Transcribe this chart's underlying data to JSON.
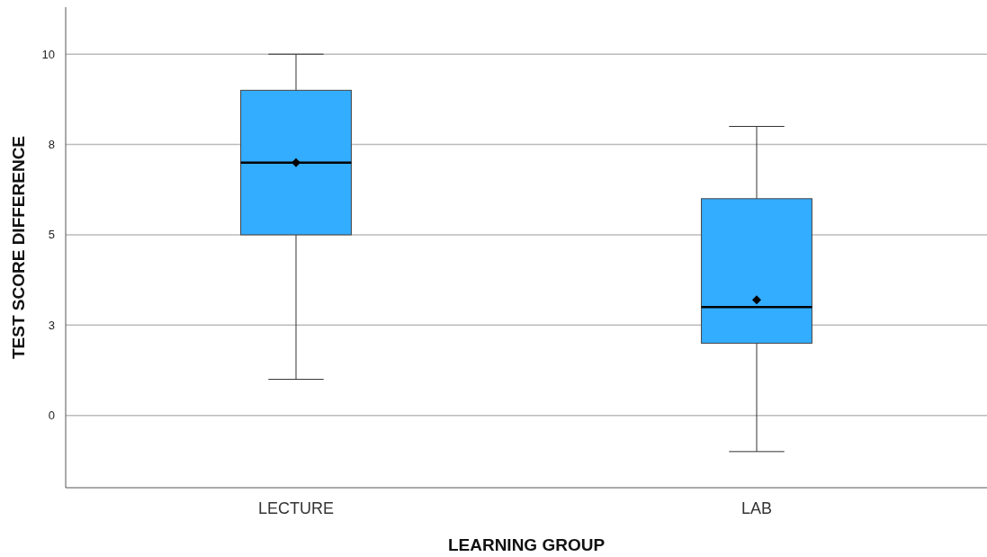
{
  "chart_data": {
    "type": "box",
    "xlabel": "LEARNING GROUP",
    "ylabel": "TEST SCORE DIFFERENCE",
    "categories": [
      "LECTURE",
      "LAB"
    ],
    "boxes": [
      {
        "low": 1,
        "q1": 5,
        "median": 7,
        "q3": 9,
        "high": 10,
        "mean": 7
      },
      {
        "low": -1,
        "q1": 2,
        "median": 3,
        "q3": 6,
        "high": 8,
        "mean": 3.2
      }
    ],
    "color": "#33adff",
    "ylim": [
      -2,
      11.3
    ],
    "yticks": [
      0,
      {
        "value": 2.5,
        "label": "3"
      },
      5,
      {
        "value": 7.5,
        "label": "8"
      },
      10
    ],
    "grid": "y",
    "marker": "diamond"
  }
}
